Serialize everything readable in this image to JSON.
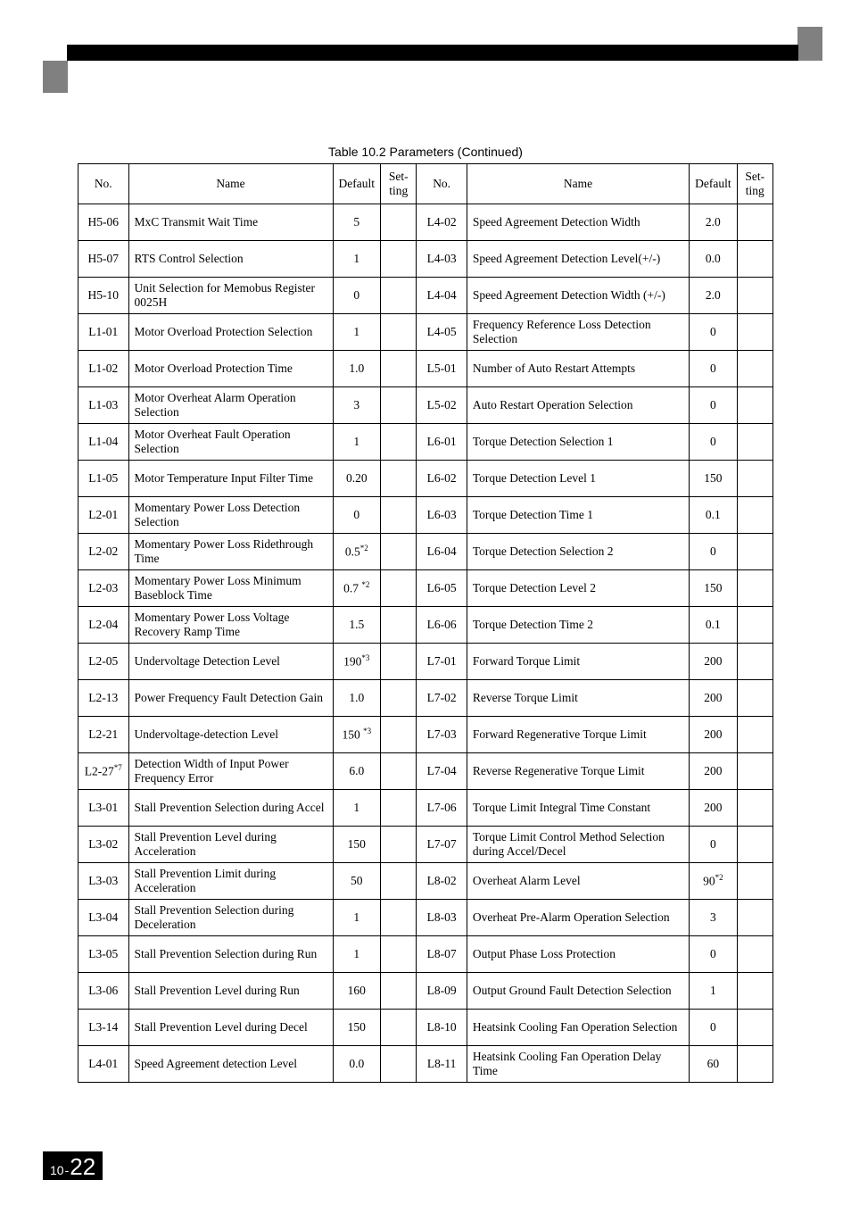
{
  "caption": "Table 10.2 Parameters (Continued)",
  "headers": [
    "No.",
    "Name",
    "Default",
    "Set-\nting",
    "No.",
    "Name",
    "Default",
    "Set-\nting"
  ],
  "rows": [
    {
      "no1": "H5-06",
      "name1": "MxC Transmit Wait Time",
      "def1": "5",
      "no2": "L4-02",
      "name2": "Speed Agreement Detection Width",
      "def2": "2.0"
    },
    {
      "no1": "H5-07",
      "name1": "RTS Control Selection",
      "def1": "1",
      "no2": "L4-03",
      "name2": "Speed Agreement Detection Level(+/-)",
      "def2": "0.0"
    },
    {
      "no1": "H5-10",
      "name1": "Unit Selection for Memobus Register 0025H",
      "def1": "0",
      "no2": "L4-04",
      "name2": "Speed Agreement Detection Width (+/-)",
      "def2": "2.0"
    },
    {
      "no1": "L1-01",
      "name1": "Motor Overload Protection Selection",
      "def1": "1",
      "no2": "L4-05",
      "name2": "Frequency Reference Loss Detection Selection",
      "def2": "0"
    },
    {
      "no1": "L1-02",
      "name1": "Motor Overload Protection Time",
      "def1": "1.0",
      "no2": "L5-01",
      "name2": "Number of Auto Restart Attempts",
      "def2": "0"
    },
    {
      "no1": "L1-03",
      "name1": "Motor Overheat Alarm Operation Selection",
      "def1": "3",
      "no2": "L5-02",
      "name2": "Auto Restart Operation Selection",
      "def2": "0"
    },
    {
      "no1": "L1-04",
      "name1": "Motor Overheat Fault Operation Selection",
      "def1": "1",
      "no2": "L6-01",
      "name2": "Torque Detection Selection 1",
      "def2": "0"
    },
    {
      "no1": "L1-05",
      "name1": "Motor Temperature Input Filter Time",
      "def1": "0.20",
      "no2": "L6-02",
      "name2": "Torque Detection Level 1",
      "def2": "150"
    },
    {
      "no1": "L2-01",
      "name1": "Momentary Power Loss Detection Selection",
      "def1": "0",
      "no2": "L6-03",
      "name2": "Torque Detection Time 1",
      "def2": "0.1"
    },
    {
      "no1": "L2-02",
      "name1": "Momentary Power Loss Ridethrough Time",
      "def1": "0.5",
      "def1sup": "*2",
      "no2": "L6-04",
      "name2": "Torque Detection Selection 2",
      "def2": "0"
    },
    {
      "no1": "L2-03",
      "name1": "Momentary Power Loss Minimum Baseblock Time",
      "def1": "0.7 ",
      "def1sup": "*2",
      "no2": "L6-05",
      "name2": "Torque Detection Level 2",
      "def2": "150"
    },
    {
      "no1": "L2-04",
      "name1": "Momentary Power Loss Voltage Recovery Ramp Time",
      "def1": "1.5",
      "no2": "L6-06",
      "name2": "Torque Detection Time 2",
      "def2": "0.1"
    },
    {
      "no1": "L2-05",
      "name1": "Undervoltage Detection Level",
      "def1": "190",
      "def1sup": "*3",
      "no2": "L7-01",
      "name2": "Forward Torque Limit",
      "def2": "200"
    },
    {
      "no1": "L2-13",
      "name1": "Power Frequency Fault Detection Gain",
      "def1": "1.0",
      "no2": "L7-02",
      "name2": "Reverse Torque Limit",
      "def2": "200"
    },
    {
      "no1": "L2-21",
      "name1": "Undervoltage-detection Level",
      "def1": "150 ",
      "def1sup": "*3",
      "no2": "L7-03",
      "name2": "Forward Regenerative Torque Limit",
      "def2": "200"
    },
    {
      "no1": "L2-27",
      "no1sup": "*7",
      "name1": "Detection Width of Input Power Frequency Error",
      "def1": "6.0",
      "no2": "L7-04",
      "name2": "Reverse Regenerative Torque Limit",
      "def2": "200"
    },
    {
      "no1": "L3-01",
      "name1": "Stall Prevention Selection during Accel",
      "def1": "1",
      "no2": "L7-06",
      "name2": "Torque Limit Integral Time Constant",
      "def2": "200"
    },
    {
      "no1": "L3-02",
      "name1": "Stall Prevention Level during Acceleration",
      "def1": "150",
      "no2": "L7-07",
      "name2": "Torque Limit Control Method Selection during Accel/Decel",
      "def2": "0"
    },
    {
      "no1": "L3-03",
      "name1": "Stall Prevention Limit during Acceleration",
      "def1": "50",
      "no2": "L8-02",
      "name2": "Overheat Alarm Level",
      "def2": "90",
      "def2sup": "*2"
    },
    {
      "no1": "L3-04",
      "name1": "Stall Prevention Selection during Deceleration",
      "def1": "1",
      "no2": "L8-03",
      "name2": "Overheat Pre-Alarm Operation Selection",
      "def2": "3"
    },
    {
      "no1": "L3-05",
      "name1": "Stall Prevention Selection during Run",
      "def1": "1",
      "no2": "L8-07",
      "name2": "Output Phase Loss Protection",
      "def2": "0"
    },
    {
      "no1": "L3-06",
      "name1": "Stall Prevention Level during Run",
      "def1": "160",
      "no2": "L8-09",
      "name2": "Output Ground Fault Detection Selection",
      "def2": "1"
    },
    {
      "no1": "L3-14",
      "name1": "Stall Prevention Level during Decel",
      "def1": "150",
      "no2": "L8-10",
      "name2": "Heatsink Cooling Fan Operation Selection",
      "def2": "0"
    },
    {
      "no1": "L4-01",
      "name1": "Speed Agreement detection Level",
      "def1": "0.0",
      "no2": "L8-11",
      "name2": "Heatsink Cooling Fan Operation Delay Time",
      "def2": "60"
    }
  ],
  "page": {
    "chapter": "10",
    "page": "22"
  }
}
